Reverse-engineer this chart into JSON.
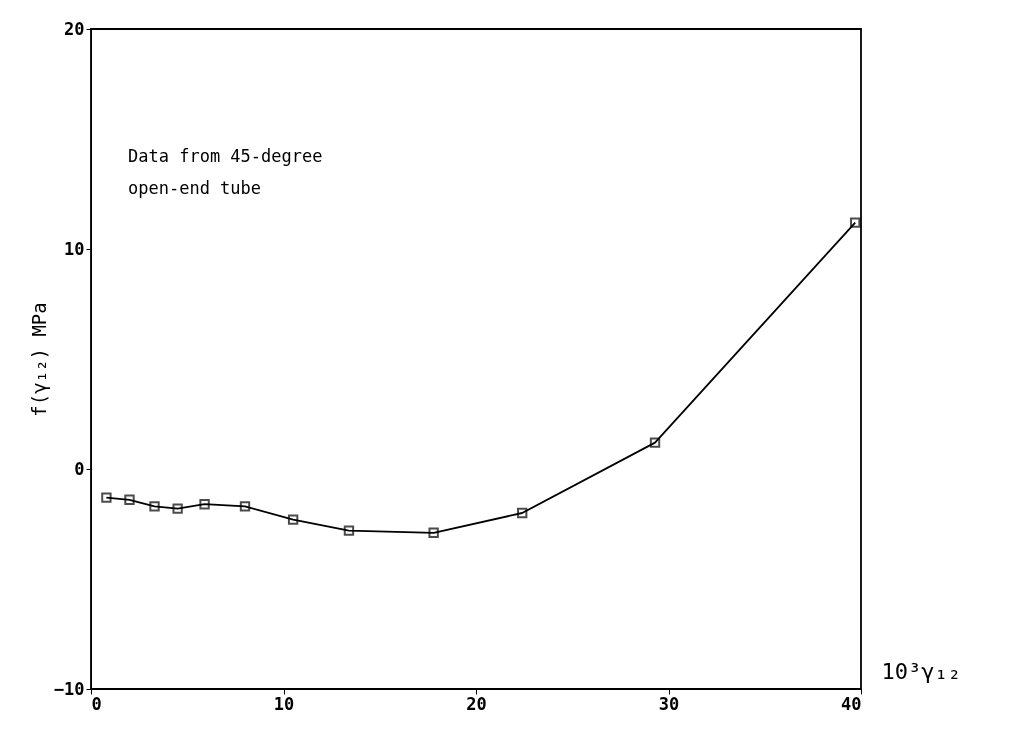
{
  "chart_data": {
    "type": "line",
    "xlabel": "10³γ₁₂",
    "ylabel": "f(γ₁₂)   MPa",
    "annotations": [
      "Data from 45-degree\nopen-end tube"
    ],
    "x": [
      0.8,
      2.0,
      3.3,
      4.5,
      5.9,
      8.0,
      10.5,
      13.4,
      17.8,
      22.4,
      29.3,
      39.7
    ],
    "series": [
      {
        "color": "#000000",
        "values": [
          -1.3,
          -1.4,
          -1.7,
          -1.8,
          -1.6,
          -1.7,
          -2.3,
          -2.8,
          -2.9,
          -2.0,
          1.2,
          11.2
        ]
      }
    ],
    "xlim": [
      0,
      40
    ],
    "xticks": [
      0,
      10,
      20,
      30,
      40
    ],
    "ylim": [
      -10,
      20
    ],
    "yticks": [
      -10,
      0,
      10,
      20
    ],
    "grid": false,
    "marker": "square",
    "line_style": "solid"
  }
}
